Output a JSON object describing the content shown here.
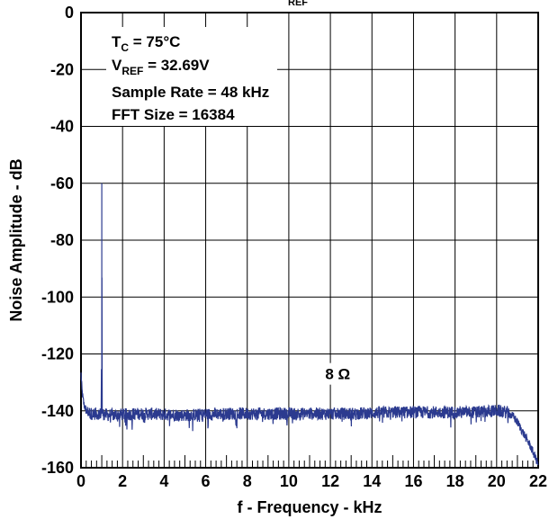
{
  "chart_data": {
    "type": "line",
    "title_fragment": "REF",
    "xlabel": "f - Frequency - kHz",
    "ylabel": "Noise Amplitude - dB",
    "xlim": [
      0,
      22
    ],
    "ylim": [
      -160,
      0
    ],
    "x_ticks": [
      0,
      2,
      4,
      6,
      8,
      10,
      12,
      14,
      16,
      18,
      20,
      22
    ],
    "y_ticks": [
      0,
      -20,
      -40,
      -60,
      -80,
      -100,
      -120,
      -140,
      -160
    ],
    "grid": true,
    "line_color": "#2b3a8f",
    "annotations": {
      "tc": {
        "main": "T",
        "sub": "C",
        "rest": " = 75°C"
      },
      "vref": {
        "main": "V",
        "sub": "REF",
        "rest": " = 32.69V"
      },
      "sample_rate": "Sample Rate = 48 kHz",
      "fft_size": "FFT Size = 16384",
      "load": "8 Ω"
    },
    "series": [
      {
        "values_description_points": [
          [
            0.0,
            -127
          ],
          [
            0.05,
            -133
          ],
          [
            0.1,
            -136
          ],
          [
            0.15,
            -138
          ],
          [
            0.25,
            -140
          ],
          [
            0.5,
            -141
          ],
          [
            0.98,
            -141
          ],
          [
            1.0,
            -60
          ],
          [
            1.02,
            -141
          ],
          [
            1.3,
            -141.5
          ],
          [
            3,
            -141
          ],
          [
            5,
            -141.5
          ],
          [
            7,
            -141
          ],
          [
            9,
            -141
          ],
          [
            11,
            -141
          ],
          [
            13,
            -141
          ],
          [
            15,
            -140.5
          ],
          [
            17,
            -140.5
          ],
          [
            19,
            -140.5
          ],
          [
            20.0,
            -140
          ],
          [
            20.5,
            -140.5
          ],
          [
            20.8,
            -142
          ],
          [
            21.0,
            -144
          ],
          [
            21.3,
            -148
          ],
          [
            21.6,
            -152
          ],
          [
            21.9,
            -157
          ],
          [
            22.0,
            -159
          ]
        ]
      }
    ]
  }
}
